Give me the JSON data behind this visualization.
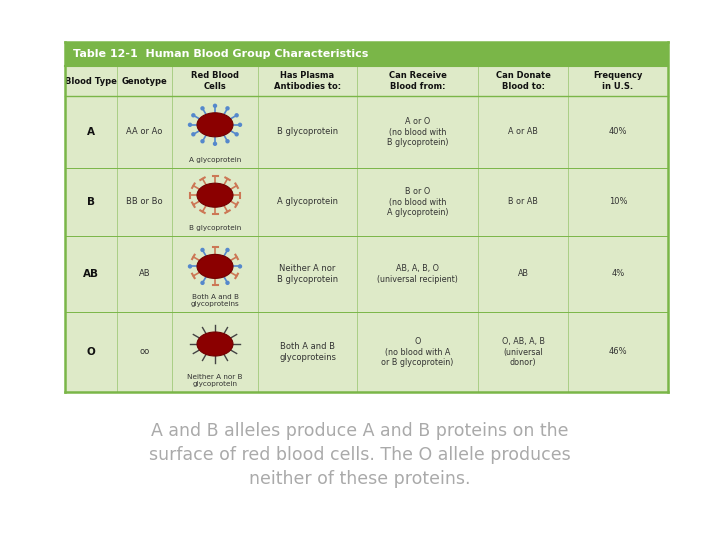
{
  "title_bg": "#7ab648",
  "title_text": "Table 12-1  Human Blood Group Characteristics",
  "title_color": "#ffffff",
  "table_bg": "#deeac8",
  "border_color": "#7ab648",
  "text_color": "#333333",
  "caption_color": "#aaaaaa",
  "rbc_color": "#8b0000",
  "rbc_dark": "#700000",
  "spike_a_color": "#5588cc",
  "spike_b_color": "#cc7755",
  "headers": [
    "Blood Type",
    "Genotype",
    "Red Blood\nCells",
    "Has Plasma\nAntibodies to:",
    "Can Receive\nBlood from:",
    "Can Donate\nBlood to:",
    "Frequency\nin U.S."
  ],
  "rows": [
    {
      "blood_type": "A",
      "genotype": "AA or Ao",
      "cell_type": "A",
      "antibodies": "B glycoprotein",
      "receive": "A or O\n(no blood with\nB glycoprotein)",
      "donate": "A or AB",
      "frequency": "40%"
    },
    {
      "blood_type": "B",
      "genotype": "BB or Bo",
      "cell_type": "B",
      "antibodies": "A glycoprotein",
      "receive": "B or O\n(no blood with\nA glycoprotein)",
      "donate": "B or AB",
      "frequency": "10%"
    },
    {
      "blood_type": "AB",
      "genotype": "AB",
      "cell_type": "AB",
      "antibodies": "Neither A nor\nB glycoprotein",
      "receive": "AB, A, B, O\n(universal recipient)",
      "donate": "AB",
      "frequency": "4%"
    },
    {
      "blood_type": "O",
      "genotype": "oo",
      "cell_type": "O",
      "antibodies": "Both A and B\nglycoproteins",
      "receive": "O\n(no blood with A\nor B glycoprotein)",
      "donate": "O, AB, A, B\n(universal\ndonor)",
      "frequency": "46%"
    }
  ],
  "cell_labels": {
    "A": "A glycoprotein",
    "B": "B glycoprotein",
    "AB": "Both A and B\nglycoproteins",
    "O": "Neither A nor B\nglycoprotein"
  },
  "caption_lines": [
    "A and B alleles produce A and B proteins on the",
    "surface of red blood cells. The O allele produces",
    "neither of these proteins."
  ]
}
